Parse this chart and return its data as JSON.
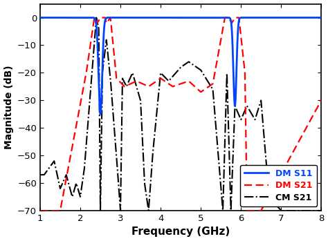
{
  "title": "",
  "xlabel": "Frequency (GHz)",
  "ylabel": "Magnitude (dB)",
  "xlim": [
    1,
    8
  ],
  "ylim": [
    -70,
    5
  ],
  "yticks": [
    0,
    -10,
    -20,
    -30,
    -40,
    -50,
    -60,
    -70
  ],
  "xticks": [
    1,
    2,
    3,
    4,
    5,
    6,
    7,
    8
  ],
  "legend": [
    "DM S11",
    "DM S21",
    "CM S21"
  ],
  "dm_s11_color": "#0044FF",
  "dm_s21_color": "#FF0000",
  "cm_s21_color": "#000000",
  "background_color": "#ffffff"
}
